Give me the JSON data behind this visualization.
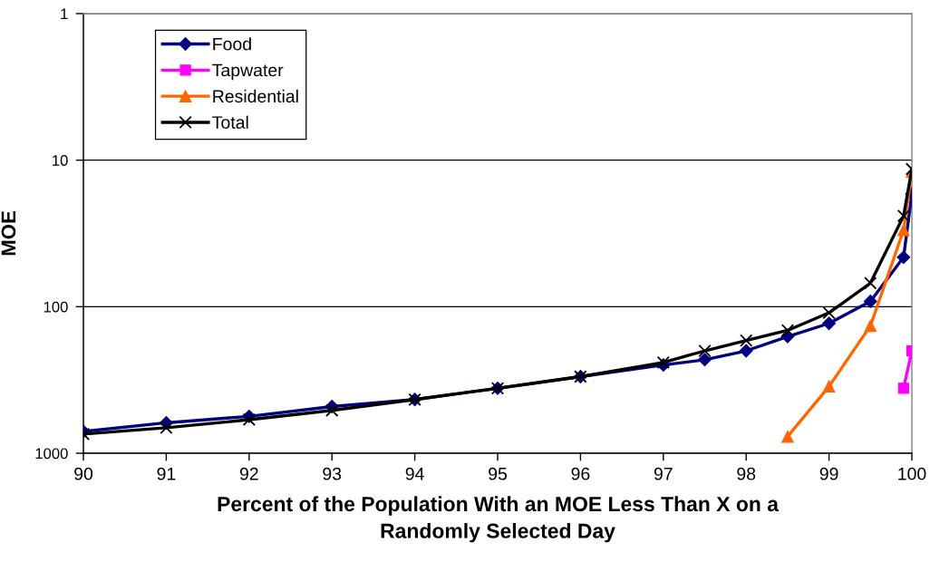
{
  "chart_data": {
    "type": "line",
    "xlabel": "Percent of the Population With an MOE Less Than X on a\nRandomly Selected Day",
    "ylabel": "MOE",
    "series": [
      {
        "name": "Food",
        "color": "#000080",
        "marker": "diamond",
        "x": [
          90,
          91,
          92,
          93,
          94,
          95,
          96,
          97,
          97.5,
          98,
          98.5,
          99,
          99.5,
          99.9,
          100
        ],
        "values": [
          710,
          620,
          560,
          480,
          430,
          360,
          300,
          250,
          230,
          200,
          160,
          130,
          92,
          46,
          17
        ]
      },
      {
        "name": "Tapwater",
        "color": "#ff00ff",
        "marker": "square",
        "x": [
          99.9,
          100
        ],
        "values": [
          360,
          200
        ]
      },
      {
        "name": "Residential",
        "color": "#ff6600",
        "marker": "triangle",
        "x": [
          98.5,
          99,
          99.5,
          99.9,
          100
        ],
        "values": [
          770,
          350,
          135,
          30,
          12
        ]
      },
      {
        "name": "Total",
        "color": "#000000",
        "marker": "cross",
        "x": [
          90,
          91,
          92,
          93,
          94,
          95,
          96,
          97,
          97.5,
          98,
          98.5,
          99,
          99.5,
          99.9,
          100
        ],
        "values": [
          740,
          670,
          590,
          510,
          430,
          360,
          300,
          240,
          200,
          170,
          145,
          110,
          69,
          24,
          11.5
        ]
      }
    ],
    "xlim": [
      90,
      100
    ],
    "xticks": [
      90,
      91,
      92,
      93,
      94,
      95,
      96,
      97,
      98,
      99,
      100
    ],
    "ylim": [
      1000,
      1
    ],
    "yticks": [
      1,
      10,
      100,
      1000
    ],
    "log": "y",
    "grid": "y",
    "legend": "top left",
    "line_style": "solid"
  }
}
